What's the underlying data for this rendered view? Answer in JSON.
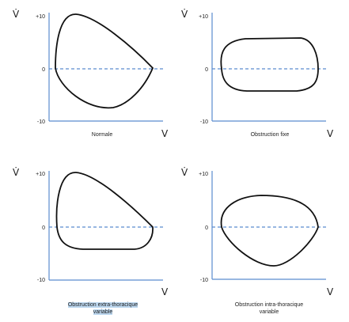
{
  "axis_symbols": {
    "y": "V̇",
    "x": "V"
  },
  "ticks": {
    "top": "+10",
    "zero": "0",
    "bottom": "-10"
  },
  "colors": {
    "axis": "#5b8ccf",
    "dashed": "#5b8ccf",
    "curve": "#111111",
    "highlight": "#bcd7ef"
  },
  "panels": [
    {
      "id": "normale",
      "caption": "Normale",
      "highlighted": false
    },
    {
      "id": "obstruction-fixe",
      "caption": "Obstruction fixe",
      "highlighted": false
    },
    {
      "id": "obstruction-extra-thoracique",
      "caption": "Obstruction extra-thoracique\nvariable",
      "highlighted": true
    },
    {
      "id": "obstruction-intra-thoracique",
      "caption": "Obstruction intra-thoracique\nvariable",
      "highlighted": false
    }
  ]
}
